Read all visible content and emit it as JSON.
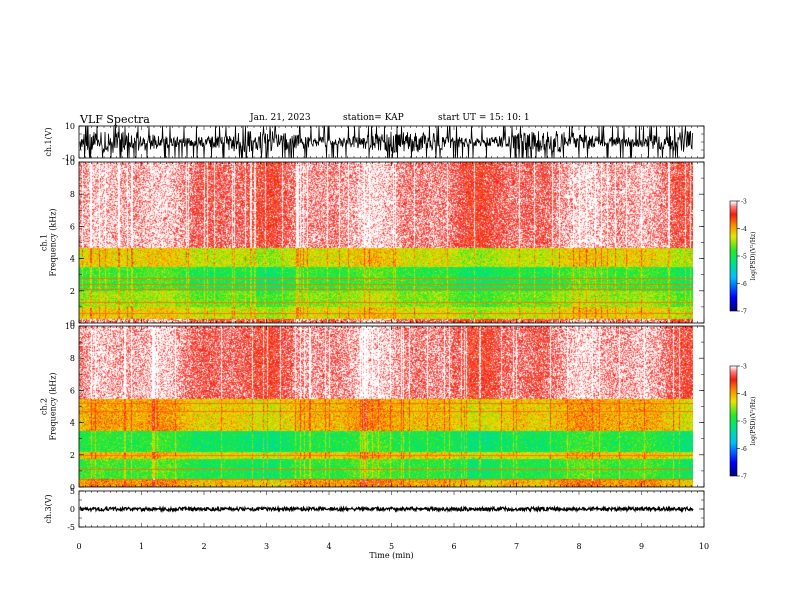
{
  "header": {
    "title": "VLF Spectra",
    "date": "Jan. 21, 2023",
    "station": "station= KAP",
    "start_ut": "start  UT  =   15: 10: 1"
  },
  "chart_data": [
    {
      "type": "line",
      "panel": "ch1-waveform",
      "ylabel": "ch.1(V)",
      "ylim": [
        -10,
        10
      ],
      "y_ticks": [
        "10",
        "-10"
      ],
      "xlim": [
        0,
        10
      ],
      "data_x_end": 9.83,
      "typical_range": [
        -7,
        7
      ],
      "grid": false
    },
    {
      "type": "heatmap",
      "panel": "ch1-spectrogram",
      "ylabel": "ch.1\nFrequency  (kHz)",
      "ylim": [
        0,
        10
      ],
      "y_ticks": [
        "0",
        "2",
        "4",
        "6",
        "8",
        "10"
      ],
      "xlim": [
        0,
        10
      ],
      "data_x_end": 9.83,
      "colorbar": {
        "label": "log(PSD)(V²/Hz)",
        "range": [
          -7,
          -3
        ],
        "ticks": [
          "-3",
          "-4",
          "-5",
          "-6",
          "-7"
        ]
      },
      "bands": [
        {
          "f": [
            0,
            0.3
          ],
          "level": -3.3
        },
        {
          "f": [
            0.3,
            1.0
          ],
          "level": -4.3
        },
        {
          "f": [
            1.0,
            2.0
          ],
          "level": -4.6
        },
        {
          "f": [
            2.0,
            3.5
          ],
          "level": -4.9
        },
        {
          "f": [
            3.5,
            4.7
          ],
          "level": -4.3
        },
        {
          "f": [
            4.7,
            10
          ],
          "level": -3.2
        }
      ],
      "lines_khz": [
        0.6,
        1.3,
        2.1,
        2.4,
        2.8,
        4.8
      ]
    },
    {
      "type": "heatmap",
      "panel": "ch2-spectrogram",
      "ylabel": "ch.2\nFrequency  (kHz)",
      "ylim": [
        0,
        10
      ],
      "y_ticks": [
        "0",
        "2",
        "4",
        "6",
        "8",
        "10"
      ],
      "xlim": [
        0,
        10
      ],
      "data_x_end": 9.83,
      "colorbar": {
        "label": "log(PSD)(V²/Hz)",
        "range": [
          -7,
          -3
        ],
        "ticks": [
          "-3",
          "-4",
          "-5",
          "-6",
          "-7"
        ]
      },
      "bands": [
        {
          "f": [
            0,
            0.5
          ],
          "level": -4.0
        },
        {
          "f": [
            0.5,
            1.8
          ],
          "level": -4.9
        },
        {
          "f": [
            1.8,
            2.2
          ],
          "level": -4.2
        },
        {
          "f": [
            2.2,
            3.5
          ],
          "level": -5.0
        },
        {
          "f": [
            3.5,
            5.5
          ],
          "level": -4.1
        },
        {
          "f": [
            5.5,
            10
          ],
          "level": -3.2
        }
      ],
      "lines_khz": [
        0.5,
        1.1,
        2.0,
        4.7,
        5.2,
        5.6
      ]
    },
    {
      "type": "line",
      "panel": "ch3-waveform",
      "ylabel": "ch.3(V)",
      "xlabel": "Time  (min)",
      "ylim": [
        -5,
        5
      ],
      "y_ticks": [
        "5",
        "0",
        "-5"
      ],
      "xlim": [
        0,
        10
      ],
      "x_ticks": [
        "0",
        "1",
        "2",
        "3",
        "4",
        "5",
        "6",
        "7",
        "8",
        "9",
        "10"
      ],
      "data_x_end": 9.83,
      "typical_range": [
        -0.5,
        0.5
      ],
      "grid": false
    }
  ]
}
